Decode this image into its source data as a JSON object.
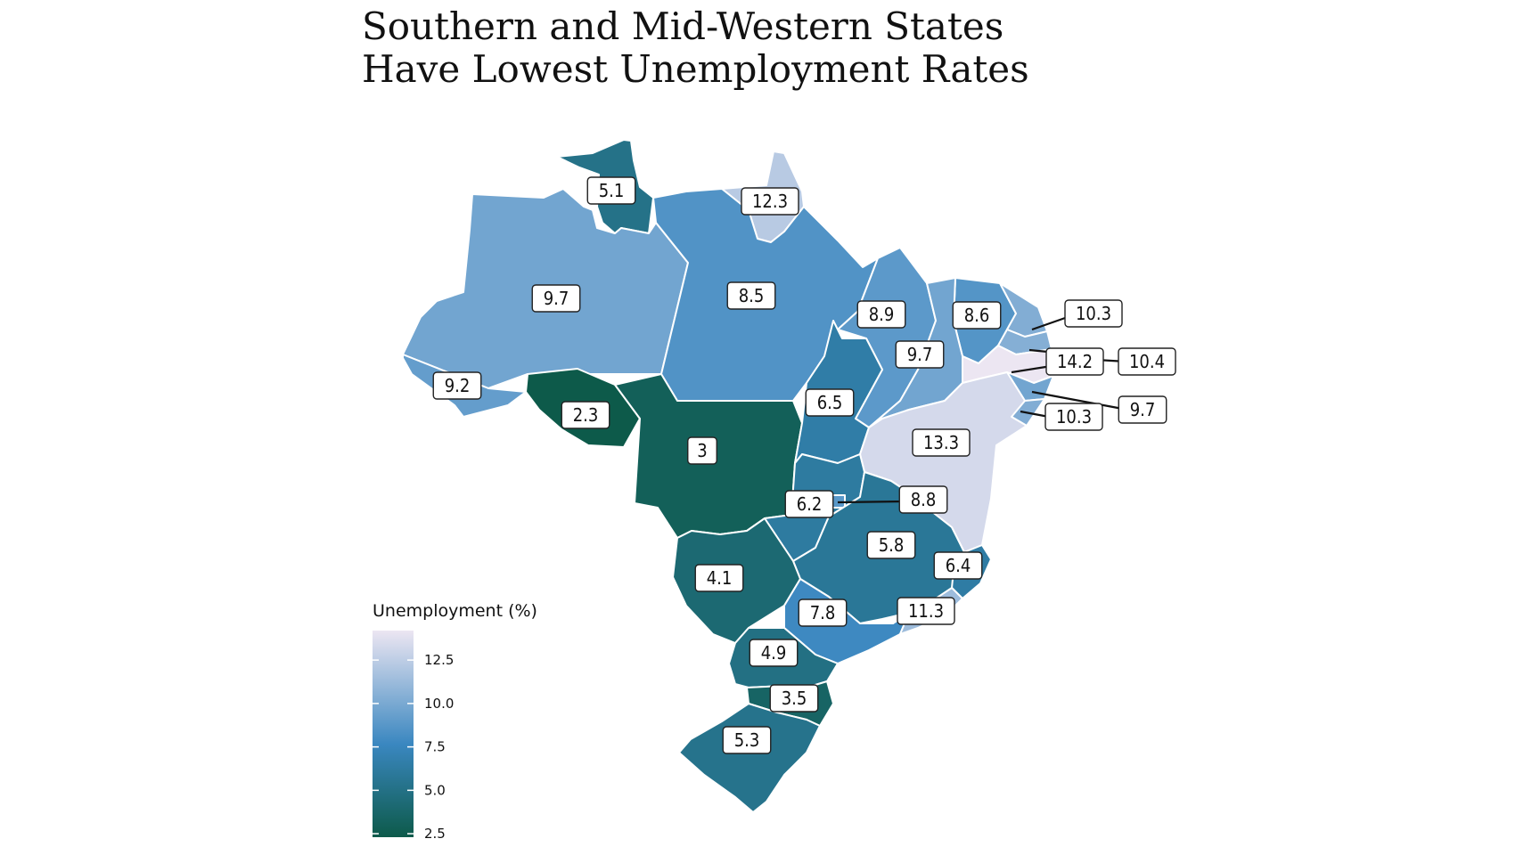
{
  "title_lines": [
    "Southern and Mid-Western States",
    "Have Lowest Unemployment Rates"
  ],
  "legend": {
    "title": "Unemployment (%)",
    "ticks": [
      "12.5",
      "10.0",
      "7.5",
      "5.0",
      "2.5"
    ],
    "range": [
      2.3,
      14.2
    ],
    "color_low": "#0d5a4a",
    "color_mid": "#3a87c0",
    "color_high": "#ece6f2"
  },
  "chart_data": {
    "type": "choropleth",
    "unit": "%",
    "regions": [
      {
        "value": 5.1
      },
      {
        "value": 12.3
      },
      {
        "value": 9.7
      },
      {
        "value": 8.5
      },
      {
        "value": 9.2
      },
      {
        "value": 2.3
      },
      {
        "value": 3
      },
      {
        "value": 8.9
      },
      {
        "value": 8.6
      },
      {
        "value": 9.7
      },
      {
        "value": 6.5
      },
      {
        "value": 10.3
      },
      {
        "value": 10.4
      },
      {
        "value": 14.2
      },
      {
        "value": 9.7
      },
      {
        "value": 10.3
      },
      {
        "value": 13.3
      },
      {
        "value": 6.2
      },
      {
        "value": 8.8
      },
      {
        "value": 5.8
      },
      {
        "value": 6.4
      },
      {
        "value": 4.1
      },
      {
        "value": 7.8
      },
      {
        "value": 11.3
      },
      {
        "value": 4.9
      },
      {
        "value": 3.5
      },
      {
        "value": 5.3
      }
    ]
  }
}
